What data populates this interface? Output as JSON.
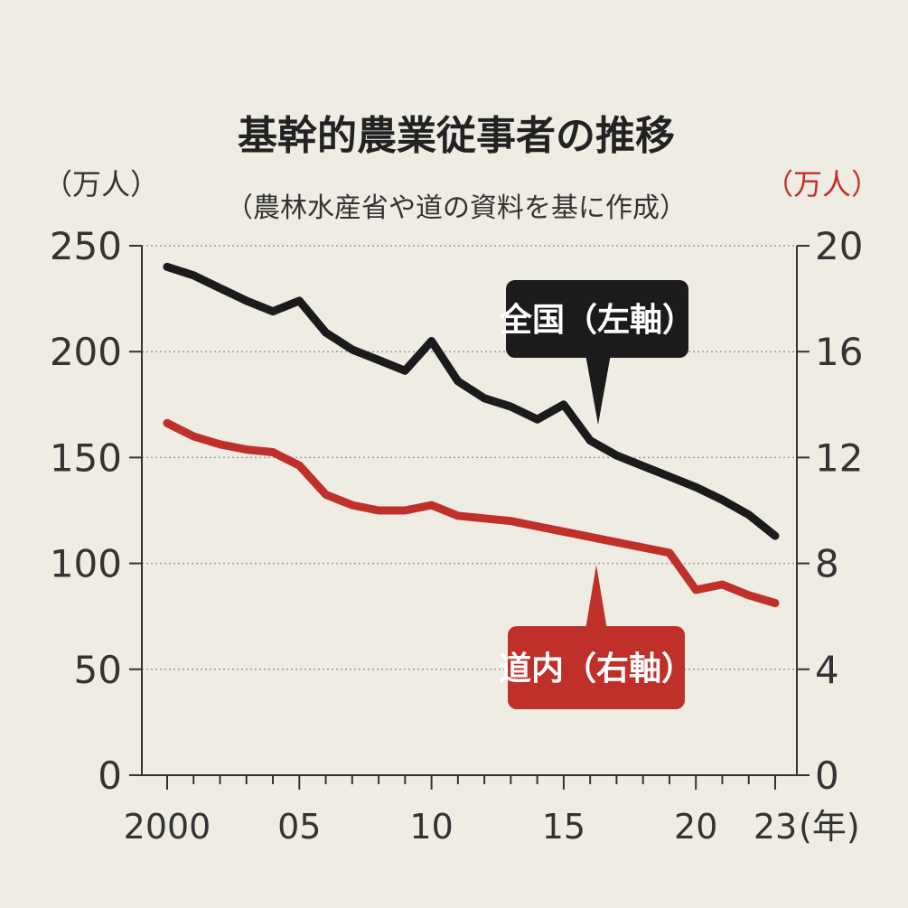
{
  "chart_data": {
    "type": "line",
    "title": "基幹的農業従事者の推移",
    "subtitle": "（農林水産省や道の資料を基に作成）",
    "left_axis": {
      "unit_label": "（万人）",
      "ylim": [
        0,
        250
      ],
      "ticks": [
        "0",
        "50",
        "100",
        "150",
        "200",
        "250"
      ]
    },
    "right_axis": {
      "unit_label": "（万人）",
      "ylim": [
        0,
        20
      ],
      "ticks": [
        "0",
        "4",
        "8",
        "12",
        "16",
        "20"
      ]
    },
    "x_axis": {
      "xlim": [
        2000,
        2023
      ],
      "ticks": [
        "2000",
        "05",
        "10",
        "15",
        "20",
        "23"
      ],
      "unit_label": "(年)"
    },
    "grid": true,
    "x": [
      2000,
      2001,
      2002,
      2003,
      2004,
      2005,
      2006,
      2007,
      2008,
      2009,
      2010,
      2011,
      2012,
      2013,
      2014,
      2015,
      2016,
      2017,
      2018,
      2019,
      2020,
      2021,
      2022,
      2023
    ],
    "series": [
      {
        "name": "全国（左軸）",
        "axis": "left",
        "color": "#1b1b1b",
        "values": [
          240,
          236,
          230,
          224,
          219,
          224,
          209,
          201,
          196,
          191,
          205,
          186,
          178,
          174,
          168,
          175,
          158,
          151,
          146,
          141,
          136,
          130,
          123,
          113
        ]
      },
      {
        "name": "道内（右軸）",
        "axis": "right",
        "color": "#c0302a",
        "values": [
          13.3,
          12.8,
          12.5,
          12.3,
          12.2,
          11.7,
          10.6,
          10.2,
          10.0,
          10.0,
          10.2,
          9.8,
          9.7,
          9.6,
          9.4,
          9.2,
          9.0,
          8.8,
          8.6,
          8.4,
          7.0,
          7.2,
          6.8,
          6.5
        ]
      }
    ]
  }
}
